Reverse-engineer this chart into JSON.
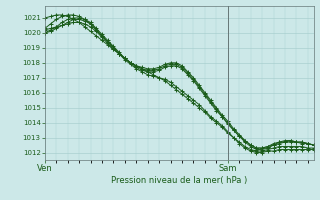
{
  "title": "Pression niveau de la mer( hPa )",
  "bg_color": "#cce8e8",
  "grid_color": "#aad0d0",
  "line_color": "#1a5c1a",
  "ylim": [
    1011.5,
    1021.8
  ],
  "yticks": [
    1012,
    1013,
    1014,
    1015,
    1016,
    1017,
    1018,
    1019,
    1020,
    1021
  ],
  "xtick_labels": [
    "Ven",
    "Sam"
  ],
  "xtick_positions": [
    0,
    32
  ],
  "total_pts": 48,
  "sam_x": 32,
  "series": [
    [
      1021.0,
      1021.1,
      1021.2,
      1021.2,
      1021.1,
      1020.9,
      1020.7,
      1020.4,
      1020.1,
      1019.8,
      1019.5,
      1019.2,
      1018.9,
      1018.6,
      1018.3,
      1018.0,
      1017.8,
      1017.6,
      1017.4,
      1017.2,
      1017.0,
      1016.8,
      1016.5,
      1016.2,
      1015.9,
      1015.6,
      1015.3,
      1015.0,
      1014.7,
      1014.3,
      1014.0,
      1013.7,
      1013.3,
      1013.0,
      1012.6,
      1012.3,
      1012.1,
      1012.0,
      1012.0,
      1012.1,
      1012.1,
      1012.2,
      1012.2,
      1012.2,
      1012.2,
      1012.2,
      1012.2,
      1012.2
    ],
    [
      1020.3,
      1020.6,
      1020.9,
      1021.1,
      1021.2,
      1021.2,
      1021.1,
      1020.9,
      1020.6,
      1020.2,
      1019.8,
      1019.4,
      1019.0,
      1018.6,
      1018.2,
      1017.9,
      1017.6,
      1017.4,
      1017.2,
      1017.1,
      1017.0,
      1016.9,
      1016.7,
      1016.4,
      1016.1,
      1015.8,
      1015.5,
      1015.2,
      1014.8,
      1014.4,
      1014.1,
      1013.8,
      1013.4,
      1013.0,
      1012.7,
      1012.4,
      1012.2,
      1012.1,
      1012.1,
      1012.2,
      1012.3,
      1012.4,
      1012.4,
      1012.4,
      1012.4,
      1012.4,
      1012.3,
      1012.3
    ],
    [
      1020.0,
      1020.2,
      1020.4,
      1020.7,
      1020.9,
      1021.0,
      1021.0,
      1020.9,
      1020.7,
      1020.3,
      1019.9,
      1019.5,
      1019.1,
      1018.7,
      1018.3,
      1018.0,
      1017.7,
      1017.5,
      1017.4,
      1017.4,
      1017.5,
      1017.7,
      1017.8,
      1017.8,
      1017.6,
      1017.2,
      1016.8,
      1016.3,
      1015.8,
      1015.3,
      1014.8,
      1014.4,
      1013.9,
      1013.5,
      1013.1,
      1012.7,
      1012.4,
      1012.2,
      1012.2,
      1012.3,
      1012.5,
      1012.6,
      1012.7,
      1012.7,
      1012.7,
      1012.6,
      1012.6,
      1012.5
    ],
    [
      1020.0,
      1020.1,
      1020.3,
      1020.5,
      1020.7,
      1020.9,
      1020.9,
      1020.8,
      1020.6,
      1020.2,
      1019.8,
      1019.4,
      1019.0,
      1018.6,
      1018.3,
      1018.0,
      1017.8,
      1017.6,
      1017.5,
      1017.5,
      1017.6,
      1017.8,
      1017.9,
      1017.9,
      1017.7,
      1017.3,
      1016.9,
      1016.4,
      1015.9,
      1015.4,
      1014.9,
      1014.4,
      1014.0,
      1013.5,
      1013.1,
      1012.8,
      1012.5,
      1012.3,
      1012.3,
      1012.4,
      1012.6,
      1012.7,
      1012.8,
      1012.8,
      1012.7,
      1012.7,
      1012.6,
      1012.5
    ],
    [
      1020.2,
      1020.3,
      1020.4,
      1020.5,
      1020.6,
      1020.7,
      1020.7,
      1020.6,
      1020.4,
      1020.1,
      1019.7,
      1019.3,
      1018.9,
      1018.6,
      1018.3,
      1018.0,
      1017.8,
      1017.7,
      1017.6,
      1017.6,
      1017.7,
      1017.9,
      1018.0,
      1018.0,
      1017.8,
      1017.4,
      1017.0,
      1016.5,
      1016.0,
      1015.5,
      1015.0,
      1014.5,
      1014.1,
      1013.6,
      1013.2,
      1012.8,
      1012.5,
      1012.3,
      1012.3,
      1012.4,
      1012.5,
      1012.7,
      1012.7,
      1012.8,
      1012.7,
      1012.7,
      1012.6,
      1012.5
    ]
  ]
}
